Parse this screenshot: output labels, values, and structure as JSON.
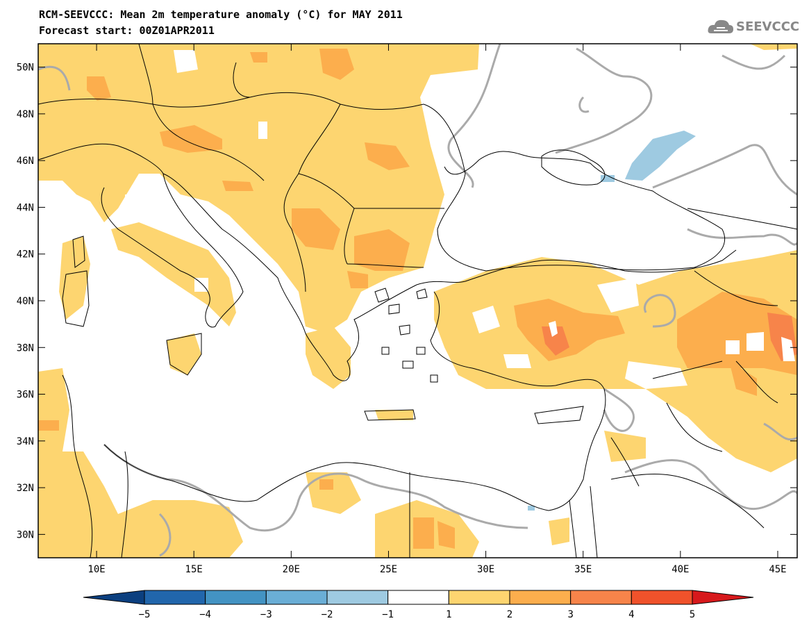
{
  "title": "RCM-SEEVCCC: Mean 2m temperature anomaly (°C) for MAY 2011",
  "subtitle": "Forecast start: 00Z01APR2011",
  "logo_text": "SEEVCCC",
  "map": {
    "lon_range": [
      7,
      46
    ],
    "lat_range": [
      29,
      51
    ],
    "lat_ticks": [
      {
        "value": 50,
        "label": "50N"
      },
      {
        "value": 48,
        "label": "48N"
      },
      {
        "value": 46,
        "label": "46N"
      },
      {
        "value": 44,
        "label": "44N"
      },
      {
        "value": 42,
        "label": "42N"
      },
      {
        "value": 40,
        "label": "40N"
      },
      {
        "value": 38,
        "label": "38N"
      },
      {
        "value": 36,
        "label": "36N"
      },
      {
        "value": 34,
        "label": "34N"
      },
      {
        "value": 32,
        "label": "32N"
      },
      {
        "value": 30,
        "label": "30N"
      }
    ],
    "lon_ticks": [
      {
        "value": 10,
        "label": "10E"
      },
      {
        "value": 15,
        "label": "15E"
      },
      {
        "value": 20,
        "label": "20E"
      },
      {
        "value": 25,
        "label": "25E"
      },
      {
        "value": 30,
        "label": "30E"
      },
      {
        "value": 35,
        "label": "35E"
      },
      {
        "value": 40,
        "label": "40E"
      },
      {
        "value": 45,
        "label": "45E"
      }
    ]
  },
  "colorbar": {
    "labels": [
      "-5",
      "-4",
      "-3",
      "-2",
      "-1",
      "1",
      "2",
      "3",
      "4",
      "5"
    ],
    "colors": [
      "#0b3f7f",
      "#2166ac",
      "#4393c3",
      "#6aaed6",
      "#9ecae1",
      "#ffffff",
      "#fdd570",
      "#fcae4d",
      "#f7844a",
      "#f0522b",
      "#d7191c"
    ]
  }
}
